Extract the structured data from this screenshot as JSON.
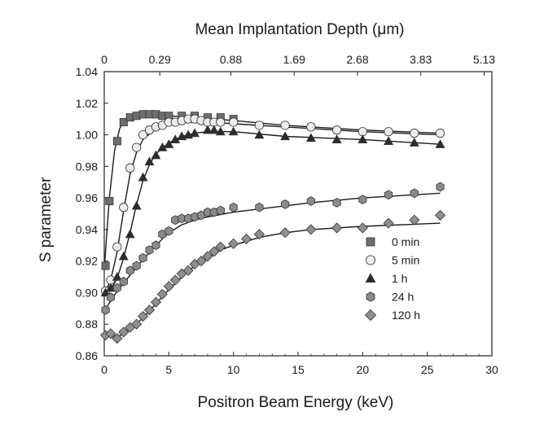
{
  "chart_data": {
    "type": "scatter",
    "title": "",
    "xlabel": "Positron Beam Energy (keV)",
    "ylabel": "S parameter",
    "top_xlabel": "Mean Implantation Depth (μm)",
    "xlim": [
      0,
      30
    ],
    "ylim": [
      0.86,
      1.04
    ],
    "x_ticks": [
      "0",
      "5",
      "10",
      "15",
      "20",
      "25",
      "30"
    ],
    "y_ticks": [
      "0.86",
      "0.88",
      "0.90",
      "0.92",
      "0.94",
      "0.96",
      "0.98",
      "1.00",
      "1.02",
      "1.04"
    ],
    "top_ticks": [
      {
        "energy": 0,
        "label": "0"
      },
      {
        "energy": 4.3,
        "label": "0.29"
      },
      {
        "energy": 9.8,
        "label": "0.88"
      },
      {
        "energy": 14.7,
        "label": "1.69"
      },
      {
        "energy": 19.6,
        "label": "2.68"
      },
      {
        "energy": 24.5,
        "label": "3.83"
      },
      {
        "energy": 29.4,
        "label": "5.13"
      }
    ],
    "grid": false,
    "legend_position": "lower-right",
    "series": [
      {
        "name": "0 min",
        "marker": "square",
        "color": "#6e6e6e",
        "points": [
          [
            0.1,
            0.917
          ],
          [
            0.4,
            0.958
          ],
          [
            1.0,
            0.996
          ],
          [
            1.5,
            1.008
          ],
          [
            2.0,
            1.011
          ],
          [
            2.5,
            1.012
          ],
          [
            3.0,
            1.013
          ],
          [
            3.5,
            1.013
          ],
          [
            4.0,
            1.013
          ],
          [
            4.5,
            1.012
          ],
          [
            5.0,
            1.012
          ],
          [
            6.0,
            1.012
          ],
          [
            7.0,
            1.012
          ],
          [
            8.0,
            1.011
          ],
          [
            9.0,
            1.011
          ],
          [
            10.0,
            1.01
          ]
        ],
        "fit": [
          [
            0.0,
            0.915
          ],
          [
            0.4,
            0.96
          ],
          [
            0.8,
            0.99
          ],
          [
            1.2,
            1.004
          ],
          [
            1.6,
            1.01
          ],
          [
            2.0,
            1.012
          ],
          [
            3.0,
            1.013
          ],
          [
            5.0,
            1.012
          ],
          [
            7.0,
            1.011
          ],
          [
            10.0,
            1.009
          ],
          [
            14.0,
            1.006
          ],
          [
            20.0,
            1.003
          ],
          [
            26.0,
            1.001
          ]
        ]
      },
      {
        "name": "5 min",
        "marker": "circle",
        "color": "#ececec",
        "points": [
          [
            0.1,
            0.901
          ],
          [
            0.5,
            0.908
          ],
          [
            1.0,
            0.929
          ],
          [
            1.5,
            0.954
          ],
          [
            2.0,
            0.979
          ],
          [
            2.5,
            0.992
          ],
          [
            3.0,
            1.0
          ],
          [
            3.5,
            1.003
          ],
          [
            4.0,
            1.005
          ],
          [
            4.5,
            1.006
          ],
          [
            5.0,
            1.008
          ],
          [
            5.5,
            1.008
          ],
          [
            6.0,
            1.009
          ],
          [
            6.5,
            1.01
          ],
          [
            7.0,
            1.01
          ],
          [
            7.5,
            1.009
          ],
          [
            8.0,
            1.008
          ],
          [
            8.5,
            1.008
          ],
          [
            9.0,
            1.008
          ],
          [
            10.0,
            1.008
          ],
          [
            12.0,
            1.006
          ],
          [
            14.0,
            1.006
          ],
          [
            16.0,
            1.005
          ],
          [
            18.0,
            1.003
          ],
          [
            20.0,
            1.002
          ],
          [
            22.0,
            1.002
          ],
          [
            24.0,
            1.001
          ],
          [
            26.0,
            1.001
          ]
        ],
        "fit": [
          [
            0.0,
            0.899
          ],
          [
            0.5,
            0.908
          ],
          [
            1.0,
            0.926
          ],
          [
            1.5,
            0.952
          ],
          [
            2.0,
            0.975
          ],
          [
            2.5,
            0.989
          ],
          [
            3.0,
            0.997
          ],
          [
            4.0,
            1.004
          ],
          [
            5.0,
            1.007
          ],
          [
            6.0,
            1.008
          ],
          [
            7.0,
            1.008
          ],
          [
            8.0,
            1.008
          ],
          [
            10.0,
            1.007
          ],
          [
            14.0,
            1.005
          ],
          [
            20.0,
            1.002
          ],
          [
            26.0,
            1.0
          ]
        ]
      },
      {
        "name": "1 h",
        "marker": "triangle",
        "color": "#2b2b2b",
        "points": [
          [
            0.1,
            0.9
          ],
          [
            0.5,
            0.903
          ],
          [
            1.0,
            0.91
          ],
          [
            1.5,
            0.923
          ],
          [
            2.0,
            0.937
          ],
          [
            2.5,
            0.955
          ],
          [
            3.0,
            0.973
          ],
          [
            3.5,
            0.983
          ],
          [
            4.0,
            0.987
          ],
          [
            4.5,
            0.992
          ],
          [
            5.0,
            0.994
          ],
          [
            5.5,
            0.997
          ],
          [
            6.0,
            0.999
          ],
          [
            6.5,
            1.0
          ],
          [
            7.0,
            1.001
          ],
          [
            8.0,
            1.003
          ],
          [
            8.5,
            1.003
          ],
          [
            9.0,
            1.002
          ],
          [
            10.0,
            1.002
          ],
          [
            12.0,
            1.0
          ],
          [
            14.0,
            0.999
          ],
          [
            16.0,
            0.998
          ],
          [
            18.0,
            0.997
          ],
          [
            20.0,
            0.997
          ],
          [
            22.0,
            0.996
          ],
          [
            24.0,
            0.995
          ],
          [
            26.0,
            0.994
          ]
        ],
        "fit": [
          [
            0.0,
            0.898
          ],
          [
            0.5,
            0.902
          ],
          [
            1.0,
            0.909
          ],
          [
            1.5,
            0.922
          ],
          [
            2.0,
            0.938
          ],
          [
            2.5,
            0.956
          ],
          [
            3.0,
            0.971
          ],
          [
            3.5,
            0.981
          ],
          [
            4.0,
            0.988
          ],
          [
            5.0,
            0.995
          ],
          [
            6.0,
            0.999
          ],
          [
            7.0,
            1.001
          ],
          [
            8.0,
            1.002
          ],
          [
            9.0,
            1.002
          ],
          [
            10.0,
            1.002
          ],
          [
            14.0,
            0.999
          ],
          [
            20.0,
            0.997
          ],
          [
            26.0,
            0.994
          ]
        ]
      },
      {
        "name": "24 h",
        "marker": "hexagon",
        "color": "#8a8a8a",
        "points": [
          [
            0.1,
            0.889
          ],
          [
            0.5,
            0.897
          ],
          [
            1.0,
            0.903
          ],
          [
            1.5,
            0.907
          ],
          [
            2.0,
            0.914
          ],
          [
            2.5,
            0.917
          ],
          [
            3.0,
            0.922
          ],
          [
            3.5,
            0.927
          ],
          [
            4.0,
            0.93
          ],
          [
            4.5,
            0.937
          ],
          [
            5.0,
            0.939
          ],
          [
            5.5,
            0.946
          ],
          [
            6.0,
            0.947
          ],
          [
            6.5,
            0.947
          ],
          [
            7.0,
            0.948
          ],
          [
            7.5,
            0.949
          ],
          [
            8.0,
            0.951
          ],
          [
            8.5,
            0.951
          ],
          [
            9.0,
            0.952
          ],
          [
            10.0,
            0.954
          ],
          [
            12.0,
            0.954
          ],
          [
            14.0,
            0.956
          ],
          [
            16.0,
            0.958
          ],
          [
            18.0,
            0.957
          ],
          [
            20.0,
            0.959
          ],
          [
            22.0,
            0.962
          ],
          [
            24.0,
            0.963
          ],
          [
            26.0,
            0.967
          ]
        ],
        "fit": [
          [
            0.0,
            0.888
          ],
          [
            0.5,
            0.895
          ],
          [
            1.0,
            0.901
          ],
          [
            2.0,
            0.911
          ],
          [
            3.0,
            0.921
          ],
          [
            4.0,
            0.93
          ],
          [
            5.0,
            0.938
          ],
          [
            6.0,
            0.943
          ],
          [
            7.0,
            0.946
          ],
          [
            8.0,
            0.948
          ],
          [
            10.0,
            0.951
          ],
          [
            12.0,
            0.953
          ],
          [
            14.0,
            0.955
          ],
          [
            16.0,
            0.957
          ],
          [
            20.0,
            0.96
          ],
          [
            26.0,
            0.963
          ]
        ]
      },
      {
        "name": "120 h",
        "marker": "diamond",
        "color": "#8f8f8f",
        "points": [
          [
            0.1,
            0.873
          ],
          [
            0.5,
            0.874
          ],
          [
            1.0,
            0.871
          ],
          [
            1.5,
            0.875
          ],
          [
            2.0,
            0.878
          ],
          [
            2.5,
            0.88
          ],
          [
            3.0,
            0.885
          ],
          [
            3.5,
            0.889
          ],
          [
            4.0,
            0.894
          ],
          [
            4.5,
            0.899
          ],
          [
            5.0,
            0.904
          ],
          [
            5.5,
            0.908
          ],
          [
            6.0,
            0.912
          ],
          [
            6.5,
            0.914
          ],
          [
            7.0,
            0.918
          ],
          [
            7.5,
            0.92
          ],
          [
            8.0,
            0.923
          ],
          [
            8.5,
            0.926
          ],
          [
            9.0,
            0.929
          ],
          [
            10.0,
            0.931
          ],
          [
            11.0,
            0.934
          ],
          [
            12.0,
            0.937
          ],
          [
            14.0,
            0.938
          ],
          [
            16.0,
            0.94
          ],
          [
            18.0,
            0.941
          ],
          [
            20.0,
            0.941
          ],
          [
            22.0,
            0.944
          ],
          [
            24.0,
            0.946
          ],
          [
            26.0,
            0.949
          ]
        ],
        "fit": [
          [
            0.0,
            0.874
          ],
          [
            0.5,
            0.873
          ],
          [
            1.0,
            0.872
          ],
          [
            1.5,
            0.874
          ],
          [
            2.0,
            0.877
          ],
          [
            3.0,
            0.884
          ],
          [
            4.0,
            0.893
          ],
          [
            5.0,
            0.902
          ],
          [
            6.0,
            0.91
          ],
          [
            7.0,
            0.917
          ],
          [
            8.0,
            0.922
          ],
          [
            9.0,
            0.927
          ],
          [
            10.0,
            0.93
          ],
          [
            12.0,
            0.935
          ],
          [
            14.0,
            0.938
          ],
          [
            16.0,
            0.94
          ],
          [
            20.0,
            0.942
          ],
          [
            26.0,
            0.944
          ]
        ]
      }
    ]
  }
}
